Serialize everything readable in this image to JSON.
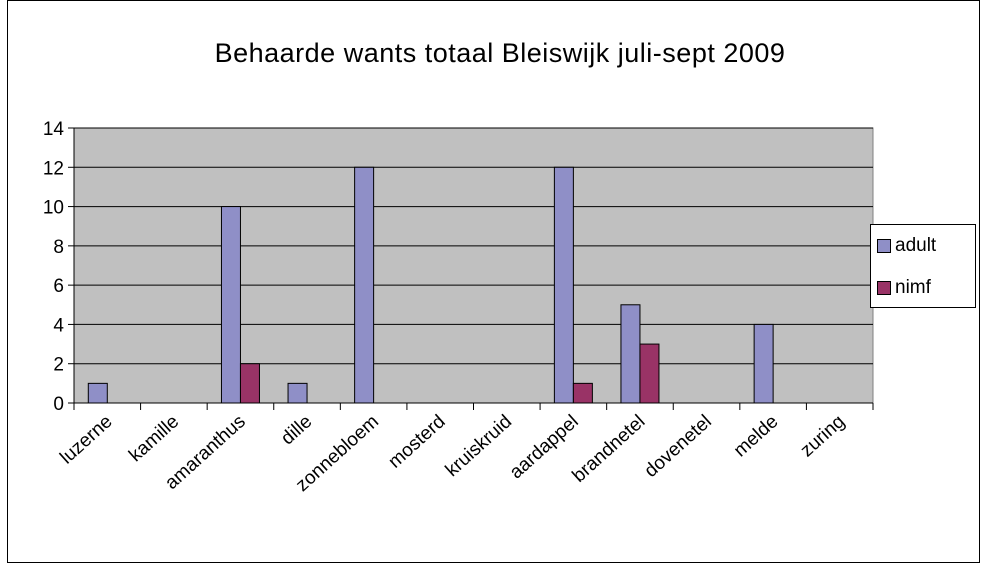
{
  "chart_data": {
    "type": "bar",
    "title": "Behaarde wants totaal Bleiswijk juli-sept 2009",
    "xlabel": "",
    "ylabel": "",
    "ylim": [
      0,
      14
    ],
    "yticks": [
      "0",
      "2",
      "4",
      "6",
      "8",
      "10",
      "12",
      "14"
    ],
    "grid": true,
    "legend_position": "right",
    "categories": [
      "luzerne",
      "kamille",
      "amaranthus",
      "dille",
      "zonnebloem",
      "mosterd",
      "kruiskruid",
      "aardappel",
      "brandnetel",
      "dovenetel",
      "melde",
      "zuring"
    ],
    "series": [
      {
        "name": "adult",
        "color": "#8f8fc7",
        "values": [
          1,
          0,
          10,
          1,
          12,
          0,
          0,
          12,
          5,
          0,
          4,
          0
        ]
      },
      {
        "name": "nimf",
        "color": "#993366",
        "values": [
          0,
          0,
          2,
          0,
          0,
          0,
          0,
          1,
          3,
          0,
          0,
          0
        ]
      }
    ],
    "plot_background": "#c0c0c0"
  }
}
